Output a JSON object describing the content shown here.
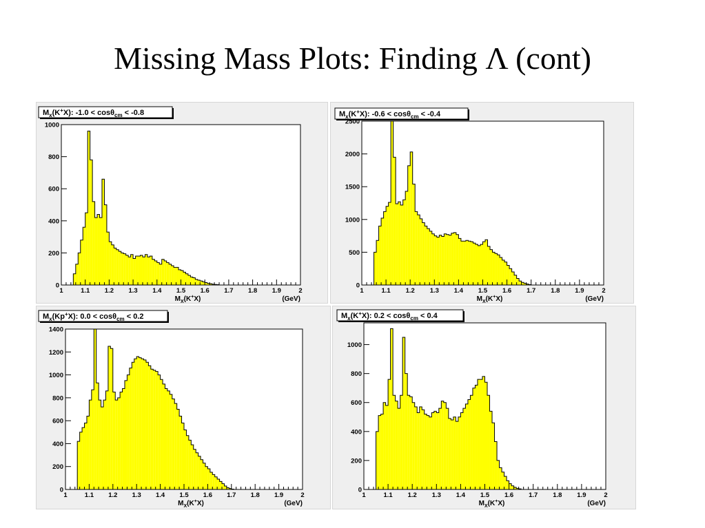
{
  "slide": {
    "title": "Missing Mass Plots: Finding Λ (cont)"
  },
  "chart_data": [
    {
      "type": "bar",
      "title": "M_x(K^+X):  -1.0 < cosθ_cm  < -0.8",
      "title_parts": {
        "pre": "M",
        "sub1": "x",
        "mid1": "(K",
        "sup": "+",
        "mid2": "X):  -1.0 < cos",
        "theta": "θ",
        "sub2": "cm",
        "post": "  < -0.8"
      },
      "xlabel": "M_x(K^+X)",
      "xlabel_parts": {
        "pre": "M",
        "sub": "X",
        "mid": "(K",
        "sup": "+",
        "post": "X)"
      },
      "xunit": "(GeV)",
      "xlim": [
        1.0,
        2.0
      ],
      "ylim": [
        0,
        1000
      ],
      "xticks": [
        "1",
        "1.1",
        "1.2",
        "1.3",
        "1.4",
        "1.5",
        "1.6",
        "1.7",
        "1.8",
        "1.9",
        "2"
      ],
      "yticks": [
        "0",
        "200",
        "400",
        "600",
        "800",
        "1000"
      ],
      "bin_start": 1.05,
      "bin_width": 0.01,
      "values": [
        70,
        130,
        200,
        280,
        360,
        450,
        960,
        780,
        520,
        420,
        440,
        420,
        660,
        500,
        330,
        270,
        250,
        230,
        220,
        210,
        200,
        195,
        185,
        175,
        190,
        165,
        180,
        180,
        185,
        175,
        190,
        175,
        180,
        160,
        150,
        140,
        130,
        160,
        150,
        140,
        130,
        120,
        110,
        110,
        95,
        90,
        80,
        70,
        60,
        50,
        45,
        35,
        30,
        25,
        20,
        15,
        10,
        8,
        5,
        3,
        2
      ]
    },
    {
      "type": "bar",
      "title": "M_x(K^+X): -0.6 < cosθ_cm < -0.4",
      "title_parts": {
        "pre": "M",
        "sub1": "x",
        "mid1": "(K",
        "sup": "+",
        "mid2": "X): -0.6 < cos",
        "theta": "θ",
        "sub2": "cm",
        "post": " < -0.4"
      },
      "xlabel": "M_x(K^+X)",
      "xlabel_parts": {
        "pre": "M",
        "sub": "X",
        "mid": "(K",
        "sup": "+",
        "post": "X)"
      },
      "xunit": "(GeV)",
      "xlim": [
        1.0,
        2.0
      ],
      "ylim": [
        0,
        2500
      ],
      "xticks": [
        "1",
        "1.1",
        "1.2",
        "1.3",
        "1.4",
        "1.5",
        "1.6",
        "1.7",
        "1.8",
        "1.9",
        "2"
      ],
      "yticks": [
        "0",
        "500",
        "1000",
        "1500",
        "2000",
        "2500"
      ],
      "bin_start": 1.05,
      "bin_width": 0.01,
      "values": [
        500,
        680,
        900,
        1020,
        1120,
        1200,
        1260,
        2720,
        1950,
        1240,
        1270,
        1220,
        1300,
        1430,
        1820,
        2030,
        1540,
        1120,
        1070,
        1010,
        950,
        900,
        860,
        820,
        780,
        750,
        730,
        760,
        740,
        780,
        770,
        760,
        790,
        800,
        770,
        710,
        670,
        670,
        680,
        670,
        660,
        640,
        620,
        600,
        620,
        660,
        690,
        590,
        540,
        500,
        480,
        460,
        420,
        380,
        350,
        300,
        250,
        200,
        150,
        100,
        60,
        40,
        25,
        15,
        5
      ]
    },
    {
      "type": "bar",
      "title": "M_x(Kp^+X): 0.0 < cosθ_cm < 0.2",
      "title_parts": {
        "pre": "M",
        "sub1": "x",
        "mid1": "(Kp",
        "sup": "+",
        "mid2": "X): 0.0 < cos",
        "theta": "θ",
        "sub2": "cm",
        "post": " < 0.2"
      },
      "xlabel": "M_x(K^+X)",
      "xlabel_parts": {
        "pre": "M",
        "sub": "X",
        "mid": "(K",
        "sup": "+",
        "post": "X)"
      },
      "xunit": "(GeV)",
      "xlim": [
        1.0,
        2.0
      ],
      "ylim": [
        0,
        1400
      ],
      "xticks": [
        "1",
        "1.1",
        "1.2",
        "1.3",
        "1.4",
        "1.5",
        "1.6",
        "1.7",
        "1.8",
        "1.9",
        "2"
      ],
      "yticks": [
        "0",
        "200",
        "400",
        "600",
        "800",
        "1000",
        "1200",
        "1400"
      ],
      "bin_start": 1.05,
      "bin_width": 0.01,
      "values": [
        420,
        500,
        540,
        580,
        640,
        780,
        870,
        1410,
        930,
        780,
        720,
        780,
        860,
        1250,
        1230,
        850,
        780,
        800,
        850,
        880,
        950,
        1000,
        1060,
        1110,
        1140,
        1160,
        1150,
        1140,
        1130,
        1110,
        1080,
        1050,
        1040,
        1030,
        1000,
        960,
        920,
        880,
        860,
        830,
        790,
        750,
        700,
        640,
        580,
        520,
        470,
        430,
        390,
        350,
        320,
        290,
        260,
        230,
        200,
        180,
        150,
        130,
        110,
        90,
        70,
        50,
        30,
        15,
        8,
        3
      ]
    },
    {
      "type": "bar",
      "title": "M_x(K^+X): 0.2 < cosθ_cm < 0.4",
      "title_parts": {
        "pre": "M",
        "sub1": "x",
        "mid1": "(K",
        "sup": "+",
        "mid2": "X): 0.2 < cos",
        "theta": "θ",
        "sub2": "cm",
        "post": " < 0.4"
      },
      "xlabel": "M_x(K^+X)",
      "xlabel_parts": {
        "pre": "M",
        "sub": "X",
        "mid": "(K",
        "sup": "+",
        "post": "X)"
      },
      "xunit": "(GeV)",
      "xlim": [
        1.0,
        2.0
      ],
      "ylim": [
        0,
        1150
      ],
      "xticks": [
        "1",
        "1.1",
        "1.2",
        "1.3",
        "1.4",
        "1.5",
        "1.6",
        "1.7",
        "1.8",
        "1.9",
        "2"
      ],
      "yticks": [
        "0",
        "200",
        "400",
        "600",
        "800",
        "1000"
      ],
      "bin_start": 1.05,
      "bin_width": 0.01,
      "values": [
        400,
        510,
        520,
        600,
        580,
        760,
        1110,
        650,
        610,
        560,
        650,
        1050,
        800,
        650,
        640,
        600,
        570,
        530,
        570,
        550,
        520,
        510,
        500,
        530,
        540,
        530,
        560,
        610,
        600,
        560,
        490,
        480,
        500,
        470,
        500,
        530,
        560,
        590,
        620,
        650,
        700,
        720,
        760,
        760,
        780,
        740,
        650,
        540,
        460,
        330,
        200,
        150,
        120,
        90,
        60,
        40,
        25,
        15,
        8,
        4
      ]
    }
  ]
}
